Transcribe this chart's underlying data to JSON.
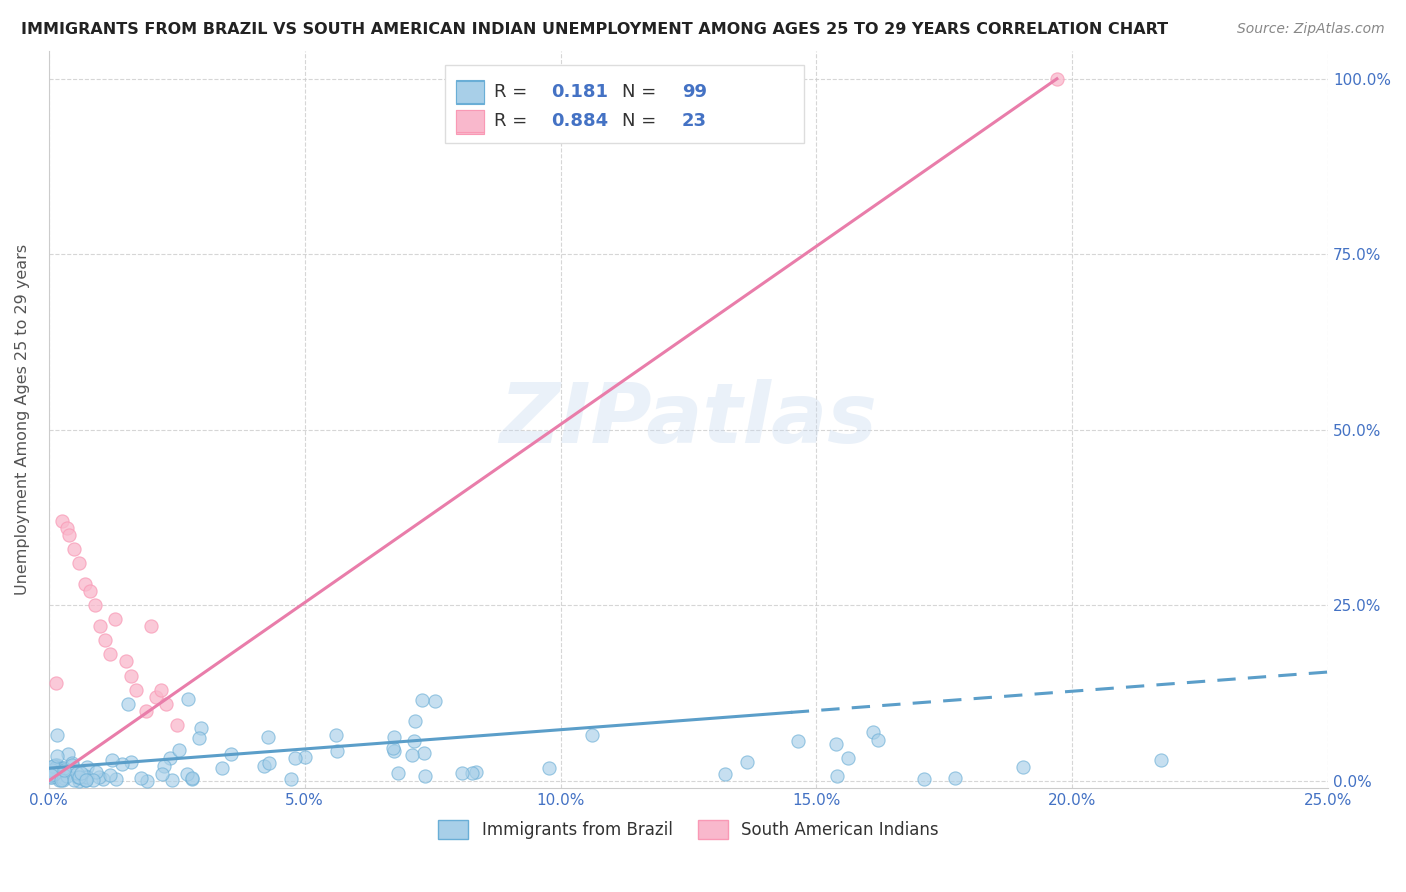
{
  "title": "IMMIGRANTS FROM BRAZIL VS SOUTH AMERICAN INDIAN UNEMPLOYMENT AMONG AGES 25 TO 29 YEARS CORRELATION CHART",
  "source": "Source: ZipAtlas.com",
  "ylabel": "Unemployment Among Ages 25 to 29 years",
  "watermark": "ZIPatlas",
  "xlim": [
    0.0,
    0.25
  ],
  "ylim": [
    0.0,
    1.04
  ],
  "blue_R": "0.181",
  "blue_N": "99",
  "pink_R": "0.884",
  "pink_N": "23",
  "legend_label_blue": "Immigrants from Brazil",
  "legend_label_pink": "South American Indians",
  "blue_fill": "#a8cfe8",
  "pink_fill": "#f9b8cc",
  "blue_edge": "#6aaed6",
  "pink_edge": "#f999b5",
  "blue_line": "#5b9ec9",
  "pink_line": "#e97daa",
  "R_N_color": "#4472c4",
  "title_color": "#222222",
  "source_color": "#888888",
  "axis_tick_color": "#4472c4",
  "grid_color": "#cccccc",
  "legend_box_color": "#dddddd",
  "bottom_legend_blue_fill": "#a8cfe8",
  "bottom_legend_pink_fill": "#f9b8cc"
}
